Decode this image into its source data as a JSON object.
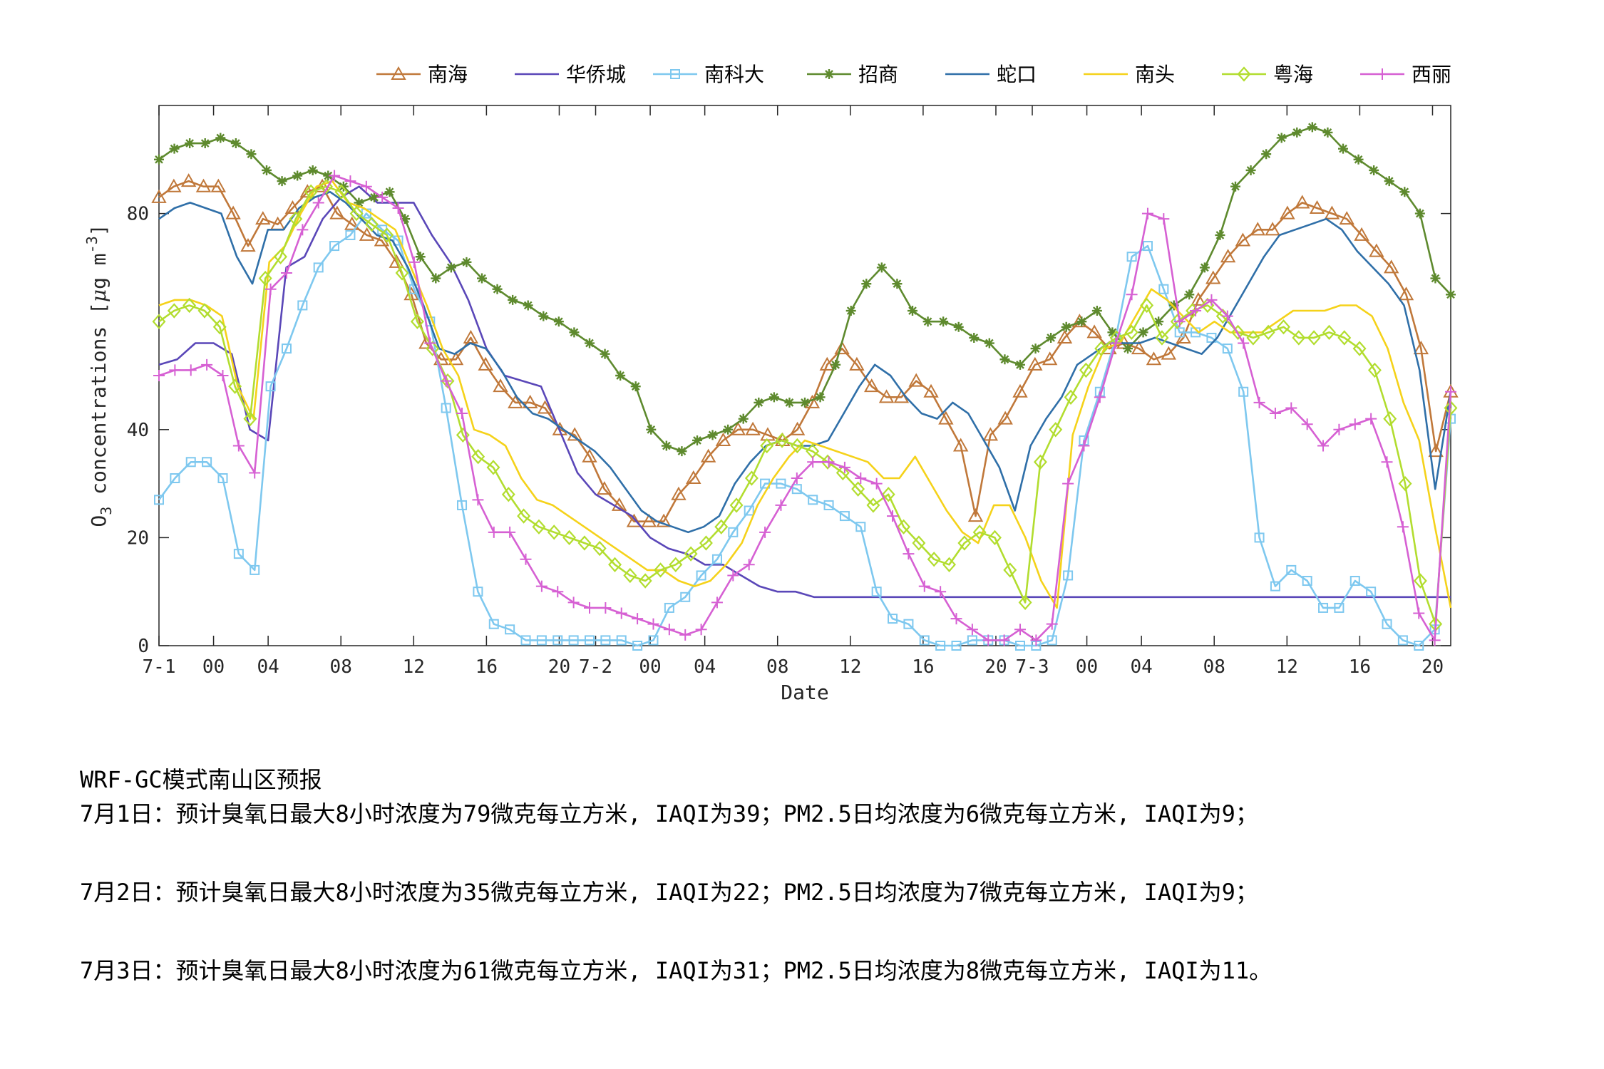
{
  "chart_data": {
    "type": "line",
    "xlabel": "Date",
    "ylabel_parts": {
      "o": "O",
      "sub": "3",
      "rest": " concentrations [",
      "mu": "μ",
      "g": "g m",
      "sup": "-3",
      "end": "]"
    },
    "ylim": [
      0,
      100
    ],
    "yticks": [
      0,
      20,
      40,
      80
    ],
    "xlim": [
      0,
      71
    ],
    "xticks": [
      {
        "x": 0,
        "label": "7-1"
      },
      {
        "x": 3,
        "label": "00"
      },
      {
        "x": 6,
        "label": "04"
      },
      {
        "x": 10,
        "label": "08"
      },
      {
        "x": 14,
        "label": "12"
      },
      {
        "x": 18,
        "label": "16"
      },
      {
        "x": 22,
        "label": "20"
      },
      {
        "x": 24,
        "label": "7-2"
      },
      {
        "x": 27,
        "label": "00"
      },
      {
        "x": 30,
        "label": "04"
      },
      {
        "x": 34,
        "label": "08"
      },
      {
        "x": 38,
        "label": "12"
      },
      {
        "x": 42,
        "label": "16"
      },
      {
        "x": 46,
        "label": "20"
      },
      {
        "x": 48,
        "label": "7-3"
      },
      {
        "x": 51,
        "label": "00"
      },
      {
        "x": 54,
        "label": "04"
      },
      {
        "x": 58,
        "label": "08"
      },
      {
        "x": 62,
        "label": "12"
      },
      {
        "x": 66,
        "label": "16"
      },
      {
        "x": 70,
        "label": "20"
      }
    ],
    "series": [
      {
        "name": "南海",
        "color": "#C0783A",
        "marker": "triangle",
        "values": [
          83,
          85,
          86,
          85,
          85,
          80,
          74,
          79,
          78,
          81,
          84,
          85,
          80,
          78,
          76,
          75,
          71,
          65,
          56,
          53,
          53,
          57,
          52,
          48,
          45,
          45,
          44,
          40,
          39,
          35,
          29,
          26,
          23,
          23,
          23,
          28,
          31,
          35,
          38,
          40,
          40,
          39,
          38,
          40,
          45,
          52,
          55,
          52,
          48,
          46,
          46,
          49,
          47,
          42,
          37,
          24,
          39,
          42,
          47,
          52,
          53,
          57,
          60,
          58,
          55,
          56,
          55,
          53,
          54,
          57,
          64,
          68,
          72,
          75,
          77,
          77,
          80,
          82,
          81,
          80,
          79,
          76,
          73,
          70,
          65,
          55,
          36,
          47
        ]
      },
      {
        "name": "华侨城",
        "color": "#5A47B8",
        "marker": "none",
        "values": [
          52,
          53,
          56,
          56,
          54,
          40,
          38,
          70,
          72,
          79,
          83,
          85,
          82,
          82,
          82,
          76,
          71,
          64,
          55,
          50,
          49,
          48,
          40,
          32,
          28,
          26,
          24,
          20,
          18,
          17,
          15,
          15,
          13,
          11,
          10,
          10,
          9,
          9,
          9,
          9,
          9,
          9,
          9,
          9,
          9,
          9,
          9,
          9,
          9,
          9,
          9,
          9,
          9,
          9,
          9,
          9,
          9,
          9,
          9,
          9,
          9,
          9,
          9,
          9,
          9,
          9,
          9,
          9,
          9,
          9,
          9,
          9
        ]
      },
      {
        "name": "南科大",
        "color": "#7EC8EF",
        "marker": "square",
        "values": [
          27,
          31,
          34,
          34,
          31,
          17,
          14,
          48,
          55,
          63,
          70,
          74,
          76,
          80,
          77,
          75,
          66,
          60,
          44,
          26,
          10,
          4,
          3,
          1,
          1,
          1,
          1,
          1,
          1,
          1,
          0,
          1,
          7,
          9,
          13,
          16,
          21,
          25,
          30,
          30,
          29,
          27,
          26,
          24,
          22,
          10,
          5,
          4,
          1,
          0,
          0,
          1,
          1,
          1,
          0,
          0,
          1,
          13,
          38,
          47,
          57,
          72,
          74,
          66,
          58,
          58,
          57,
          55,
          47,
          20,
          11,
          14,
          12,
          7,
          7,
          12,
          10,
          4,
          1,
          0,
          3,
          42
        ]
      },
      {
        "name": "招商",
        "color": "#5E8A2E",
        "marker": "star",
        "values": [
          90,
          92,
          93,
          93,
          94,
          93,
          91,
          88,
          86,
          87,
          88,
          87,
          85,
          82,
          83,
          84,
          79,
          72,
          68,
          70,
          71,
          68,
          66,
          64,
          63,
          61,
          60,
          58,
          56,
          54,
          50,
          48,
          40,
          37,
          36,
          38,
          39,
          40,
          42,
          45,
          46,
          45,
          45,
          46,
          52,
          62,
          67,
          70,
          67,
          62,
          60,
          60,
          59,
          57,
          56,
          53,
          52,
          55,
          57,
          59,
          60,
          62,
          58,
          55,
          58,
          60,
          63,
          65,
          70,
          76,
          85,
          88,
          91,
          94,
          95,
          96,
          95,
          92,
          90,
          88,
          86,
          84,
          80,
          68,
          65
        ]
      },
      {
        "name": "蛇口",
        "color": "#2F6FA8",
        "marker": "none",
        "values": [
          79,
          81,
          82,
          81,
          80,
          72,
          67,
          77,
          77,
          81,
          83,
          84,
          82,
          79,
          76,
          75,
          70,
          63,
          55,
          54,
          56,
          55,
          51,
          46,
          43,
          42,
          40,
          38,
          36,
          33,
          29,
          25,
          23,
          22,
          21,
          22,
          24,
          30,
          34,
          37,
          38,
          37,
          37,
          38,
          43,
          48,
          52,
          50,
          46,
          43,
          42,
          45,
          43,
          38,
          33,
          25,
          37,
          42,
          46,
          52,
          54,
          56,
          56,
          56,
          57,
          56,
          55,
          54,
          57,
          62,
          67,
          72,
          76,
          77,
          78,
          79,
          77,
          73,
          70,
          67,
          63,
          51,
          29,
          47
        ]
      },
      {
        "name": "南头",
        "color": "#F5D21A",
        "marker": "none",
        "values": [
          63,
          64,
          64,
          63,
          61,
          48,
          42,
          71,
          74,
          80,
          85,
          86,
          82,
          81,
          79,
          77,
          70,
          63,
          55,
          50,
          40,
          39,
          37,
          31,
          27,
          26,
          24,
          22,
          20,
          18,
          16,
          14,
          14,
          12,
          11,
          12,
          15,
          19,
          26,
          31,
          35,
          38,
          37,
          36,
          35,
          34,
          31,
          31,
          35,
          30,
          25,
          21,
          19,
          26,
          26,
          20,
          12,
          7,
          39,
          48,
          55,
          56,
          61,
          66,
          64,
          61,
          58,
          60,
          58,
          58,
          58,
          60,
          62,
          62,
          62,
          63,
          63,
          61,
          55,
          45,
          38,
          22,
          7
        ]
      },
      {
        "name": "粤海",
        "color": "#B2DD2F",
        "marker": "diamond",
        "values": [
          60,
          62,
          63,
          62,
          59,
          48,
          42,
          68,
          72,
          79,
          84,
          85,
          84,
          80,
          78,
          76,
          69,
          60,
          55,
          49,
          39,
          35,
          33,
          28,
          24,
          22,
          21,
          20,
          19,
          18,
          15,
          13,
          12,
          14,
          15,
          17,
          19,
          22,
          26,
          31,
          37,
          38,
          37,
          36,
          34,
          32,
          29,
          26,
          28,
          22,
          19,
          16,
          15,
          19,
          21,
          20,
          14,
          8,
          34,
          40,
          46,
          51,
          55,
          57,
          58,
          63,
          57,
          60,
          62,
          63,
          61,
          58,
          57,
          58,
          59,
          57,
          57,
          58,
          57,
          55,
          51,
          42,
          30,
          12,
          4,
          44
        ]
      },
      {
        "name": "西丽",
        "color": "#D660D3",
        "marker": "plus",
        "values": [
          50,
          51,
          51,
          52,
          50,
          37,
          32,
          66,
          69,
          77,
          82,
          87,
          86,
          85,
          83,
          81,
          71,
          56,
          49,
          43,
          27,
          21,
          21,
          16,
          11,
          10,
          8,
          7,
          7,
          6,
          5,
          4,
          3,
          2,
          3,
          8,
          13,
          15,
          21,
          26,
          31,
          34,
          34,
          33,
          31,
          30,
          24,
          17,
          11,
          10,
          5,
          3,
          1,
          1,
          3,
          1,
          4,
          30,
          37,
          46,
          56,
          65,
          80,
          79,
          60,
          62,
          64,
          61,
          56,
          45,
          43,
          44,
          41,
          37,
          40,
          41,
          42,
          34,
          22,
          6,
          1,
          47
        ]
      }
    ]
  },
  "forecast": {
    "title": "WRF-GC模式南山区预报",
    "lines": [
      "7月1日：预计臭氧日最大8小时浓度为79微克每立方米, IAQI为39；PM2.5日均浓度为6微克每立方米, IAQI为9；",
      "7月2日：预计臭氧日最大8小时浓度为35微克每立方米, IAQI为22；PM2.5日均浓度为7微克每立方米, IAQI为9；",
      "7月3日：预计臭氧日最大8小时浓度为61微克每立方米, IAQI为31；PM2.5日均浓度为8微克每立方米, IAQI为11。"
    ]
  }
}
